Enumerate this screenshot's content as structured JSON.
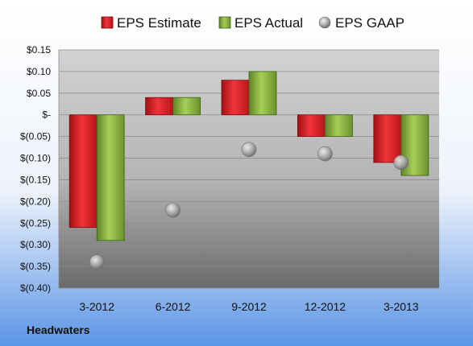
{
  "company_name": "Headwaters",
  "colors": {
    "estimate": "#e01e24",
    "actual": "#8cb83a",
    "gaap": "#a9a9a9",
    "background_top": "#ffffff",
    "background_bottom": "#5b95e6"
  },
  "chart_data": {
    "type": "bar",
    "categories": [
      "3-2012",
      "6-2012",
      "9-2012",
      "12-2012",
      "3-2013"
    ],
    "series": [
      {
        "name": "EPS Estimate",
        "kind": "bar",
        "values": [
          -0.26,
          0.04,
          0.08,
          -0.05,
          -0.11
        ]
      },
      {
        "name": "EPS Actual",
        "kind": "bar",
        "values": [
          -0.29,
          0.04,
          0.1,
          -0.05,
          -0.14
        ]
      },
      {
        "name": "EPS GAAP",
        "kind": "scatter",
        "values": [
          -0.34,
          -0.22,
          -0.08,
          -0.09,
          -0.11
        ]
      }
    ],
    "ylim": [
      -0.4,
      0.15
    ],
    "yticks": [
      0.15,
      0.1,
      0.05,
      0.0,
      -0.05,
      -0.1,
      -0.15,
      -0.2,
      -0.25,
      -0.3,
      -0.35,
      -0.4
    ],
    "ytick_labels": [
      "$0.15",
      "$0.10",
      "$0.05",
      "$-",
      "$(0.05)",
      "$(0.10)",
      "$(0.15)",
      "$(0.20)",
      "$(0.25)",
      "$(0.30)",
      "$(0.35)",
      "$(0.40)"
    ],
    "legend_position": "top",
    "grid": true
  }
}
